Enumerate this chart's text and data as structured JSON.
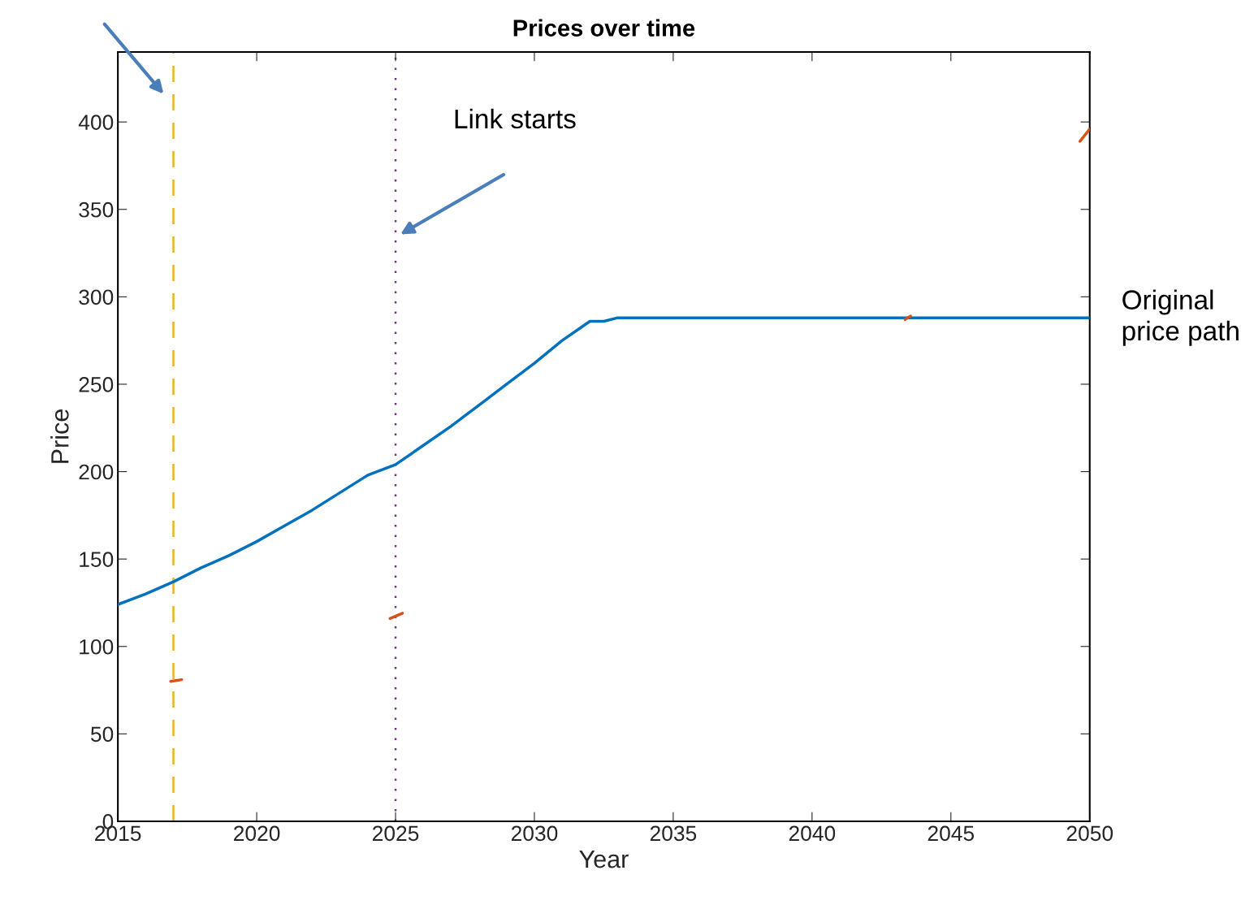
{
  "chart_data": {
    "type": "line",
    "title": "Prices over time",
    "xlabel": "Year",
    "ylabel": "Price",
    "xlim": [
      2015,
      2050
    ],
    "xticks": [
      2015,
      2020,
      2025,
      2030,
      2035,
      2040,
      2045,
      2050
    ],
    "ylim": [
      0,
      440
    ],
    "yticks": [
      0,
      50,
      100,
      150,
      200,
      250,
      300,
      350,
      400
    ],
    "grid": false,
    "legend": false,
    "series": [
      {
        "name": "Original price path",
        "color": "#0072bd",
        "x": [
          2015,
          2016,
          2017,
          2018,
          2019,
          2020,
          2021,
          2022,
          2023,
          2024,
          2025,
          2026,
          2027,
          2028,
          2029,
          2030,
          2031,
          2032,
          2032.5,
          2033,
          2040,
          2050
        ],
        "values": [
          124,
          130,
          137,
          145,
          152,
          160,
          169,
          178,
          188,
          198,
          204,
          215,
          226,
          238,
          250,
          262,
          275,
          286,
          286,
          288,
          288,
          288
        ]
      },
      {
        "color": "#d95319",
        "x": [
          2016.9,
          2017.3
        ],
        "values": [
          80,
          81
        ]
      },
      {
        "color": "#d95319",
        "x": [
          2024.8,
          2025.25
        ],
        "values": [
          116,
          119
        ]
      },
      {
        "color": "#d95319",
        "x": [
          2043.35,
          2043.55
        ],
        "values": [
          287,
          289
        ]
      },
      {
        "color": "#d95319",
        "x": [
          2049.65,
          2050
        ],
        "values": [
          389,
          396
        ]
      }
    ],
    "ref_lines": [
      {
        "axis": "x",
        "value": 2017,
        "color": "#edb120",
        "line_style": "dashed"
      },
      {
        "axis": "x",
        "value": 2025,
        "color": "#7e2f8e",
        "line_style": "dotted"
      }
    ],
    "annotations": [
      "Link starts"
    ]
  }
}
